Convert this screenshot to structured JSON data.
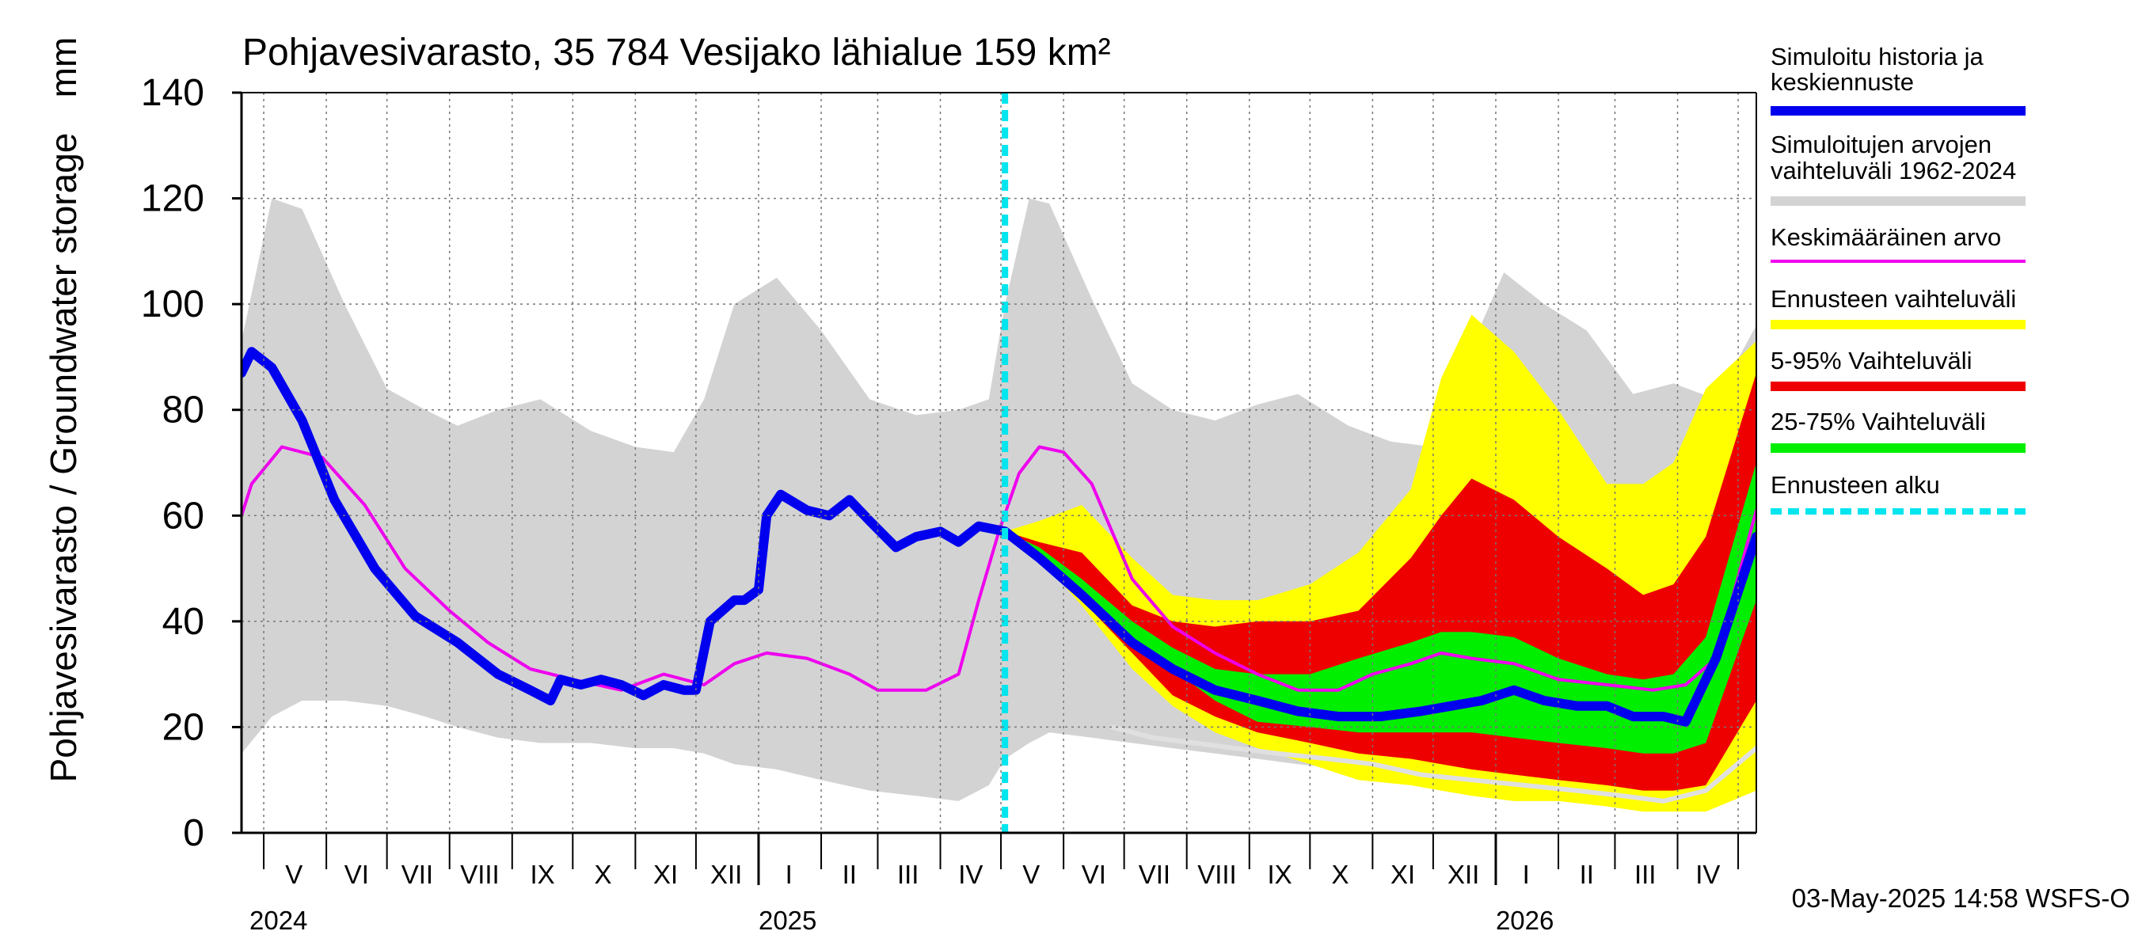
{
  "chart_data": {
    "type": "area",
    "title": "Pohjavesivarasto, 35 784 Vesijako lähialue 159 km²",
    "ylabel": "Pohjavesivarasto / Groundwater storage",
    "yunit": "mm",
    "ylim": [
      0,
      140
    ],
    "yticks": [
      0,
      20,
      40,
      60,
      80,
      100,
      120,
      140
    ],
    "x_start": "2024-04-20",
    "x_end": "2026-05-10",
    "forecast_start": "2025-05-03",
    "month_labels": [
      {
        "label": "V",
        "date": "2024-05-16"
      },
      {
        "label": "VI",
        "date": "2024-06-16"
      },
      {
        "label": "VII",
        "date": "2024-07-16"
      },
      {
        "label": "VIII",
        "date": "2024-08-16"
      },
      {
        "label": "IX",
        "date": "2024-09-16"
      },
      {
        "label": "X",
        "date": "2024-10-16"
      },
      {
        "label": "XI",
        "date": "2024-11-16"
      },
      {
        "label": "XII",
        "date": "2024-12-16"
      },
      {
        "label": "I",
        "date": "2025-01-16"
      },
      {
        "label": "II",
        "date": "2025-02-15"
      },
      {
        "label": "III",
        "date": "2025-03-16"
      },
      {
        "label": "IV",
        "date": "2025-04-16"
      },
      {
        "label": "V",
        "date": "2025-05-16"
      },
      {
        "label": "VI",
        "date": "2025-06-16"
      },
      {
        "label": "VII",
        "date": "2025-07-16"
      },
      {
        "label": "VIII",
        "date": "2025-08-16"
      },
      {
        "label": "IX",
        "date": "2025-09-16"
      },
      {
        "label": "X",
        "date": "2025-10-16"
      },
      {
        "label": "XI",
        "date": "2025-11-16"
      },
      {
        "label": "XII",
        "date": "2025-12-16"
      },
      {
        "label": "I",
        "date": "2026-01-16"
      },
      {
        "label": "II",
        "date": "2026-02-15"
      },
      {
        "label": "III",
        "date": "2026-03-16"
      },
      {
        "label": "IV",
        "date": "2026-04-16"
      }
    ],
    "year_labels": [
      {
        "label": "2024",
        "date": "2024-04-20"
      },
      {
        "label": "2025",
        "date": "2025-01-01"
      },
      {
        "label": "2026",
        "date": "2026-01-01"
      }
    ],
    "legend": [
      {
        "label": "Simuloitu historia ja keskiennuste",
        "color": "#0000ee",
        "style": "thick"
      },
      {
        "label": "Simuloitujen arvojen vaihteluväli 1962-2024",
        "color": "#d3d3d3",
        "style": "thick"
      },
      {
        "label": "Keskimääräinen arvo",
        "color": "#ee00ee",
        "style": "thin"
      },
      {
        "label": "Ennusteen vaihteluväli",
        "color": "#ffff00",
        "style": "thick"
      },
      {
        "label": "5-95% Vaihteluväli",
        "color": "#ee0000",
        "style": "thick"
      },
      {
        "label": "25-75% Vaihteluväli",
        "color": "#00ee00",
        "style": "thick"
      },
      {
        "label": "Ennusteen alku",
        "color": "#00e5ee",
        "style": "dashed"
      }
    ],
    "footer": "03-May-2025 14:58 WSFS-O",
    "series": [
      {
        "name": "Simuloitujen arvojen vaihteluväli 1962-2024",
        "type": "band",
        "color": "#d3d3d3",
        "x": [
          "2024-04-20",
          "2024-05-05",
          "2024-05-20",
          "2024-06-10",
          "2024-07-01",
          "2024-07-20",
          "2024-08-05",
          "2024-08-25",
          "2024-09-15",
          "2024-10-10",
          "2024-11-01",
          "2024-11-20",
          "2024-12-05",
          "2024-12-20",
          "2025-01-10",
          "2025-02-01",
          "2025-02-25",
          "2025-03-20",
          "2025-04-10",
          "2025-04-25",
          "2025-05-03",
          "2025-05-15",
          "2025-05-25",
          "2025-06-15",
          "2025-07-05",
          "2025-07-25",
          "2025-08-15",
          "2025-09-05",
          "2025-09-25",
          "2025-10-20",
          "2025-11-10",
          "2025-12-01",
          "2025-12-20",
          "2026-01-05",
          "2026-01-25",
          "2026-02-15",
          "2026-03-10",
          "2026-03-30",
          "2026-04-20",
          "2026-05-10"
        ],
        "lower": [
          15,
          22,
          25,
          25,
          24,
          22,
          20,
          18,
          17,
          17,
          16,
          16,
          15,
          13,
          12,
          10,
          8,
          7,
          6,
          9,
          14,
          17,
          19,
          18,
          17,
          16,
          15,
          14,
          13,
          12,
          11,
          10,
          9,
          9,
          9,
          8,
          7,
          6,
          6,
          14
        ],
        "upper": [
          93,
          120,
          118,
          100,
          84,
          80,
          77,
          80,
          82,
          76,
          73,
          72,
          82,
          100,
          105,
          95,
          82,
          79,
          80,
          82,
          100,
          120,
          119,
          101,
          85,
          80,
          78,
          81,
          83,
          77,
          74,
          73,
          92,
          106,
          100,
          95,
          83,
          85,
          82,
          96
        ]
      },
      {
        "name": "Ennusteen vaihteluväli",
        "type": "band",
        "color": "#ffff00",
        "x": [
          "2025-05-03",
          "2025-05-20",
          "2025-06-10",
          "2025-07-05",
          "2025-07-25",
          "2025-08-15",
          "2025-09-05",
          "2025-10-01",
          "2025-10-25",
          "2025-11-20",
          "2025-12-05",
          "2025-12-20",
          "2026-01-10",
          "2026-02-01",
          "2026-02-25",
          "2026-03-15",
          "2026-03-30",
          "2026-04-15",
          "2026-05-10"
        ],
        "lower": [
          57,
          52,
          43,
          31,
          24,
          19,
          16,
          13,
          10,
          9,
          8,
          7,
          6,
          6,
          5,
          4,
          4,
          4,
          8
        ],
        "upper": [
          57,
          59,
          62,
          52,
          45,
          44,
          44,
          47,
          53,
          65,
          86,
          98,
          91,
          80,
          66,
          66,
          70,
          84,
          93
        ]
      },
      {
        "name": "5-95% Vaihteluväli",
        "type": "band",
        "color": "#ee0000",
        "x": [
          "2025-05-03",
          "2025-05-20",
          "2025-06-10",
          "2025-07-05",
          "2025-07-25",
          "2025-08-15",
          "2025-09-05",
          "2025-10-01",
          "2025-10-25",
          "2025-11-20",
          "2025-12-05",
          "2025-12-20",
          "2026-01-10",
          "2026-02-01",
          "2026-02-25",
          "2026-03-15",
          "2026-03-30",
          "2026-04-15",
          "2026-05-10"
        ],
        "lower": [
          57,
          52,
          44,
          34,
          26,
          22,
          19,
          17,
          15,
          14,
          13,
          12,
          11,
          10,
          9,
          8,
          8,
          9,
          25
        ],
        "upper": [
          57,
          55,
          53,
          43,
          40,
          39,
          40,
          40,
          42,
          52,
          60,
          67,
          63,
          56,
          50,
          45,
          47,
          56,
          87
        ]
      },
      {
        "name": "25-75% Vaihteluväli",
        "type": "band",
        "color": "#00ee00",
        "x": [
          "2025-05-03",
          "2025-05-20",
          "2025-06-10",
          "2025-07-05",
          "2025-07-25",
          "2025-08-15",
          "2025-09-05",
          "2025-10-01",
          "2025-10-25",
          "2025-11-20",
          "2025-12-05",
          "2025-12-20",
          "2026-01-10",
          "2026-02-01",
          "2026-02-25",
          "2026-03-15",
          "2026-03-30",
          "2026-04-15",
          "2026-05-10"
        ],
        "lower": [
          57,
          53,
          46,
          37,
          31,
          25,
          21,
          20,
          19,
          19,
          19,
          19,
          18,
          17,
          16,
          15,
          15,
          17,
          44
        ],
        "upper": [
          57,
          54,
          48,
          40,
          35,
          31,
          30,
          30,
          33,
          36,
          38,
          38,
          37,
          33,
          30,
          29,
          30,
          37,
          70
        ]
      },
      {
        "name": "Simuloitujen minimi",
        "type": "line",
        "color": "#e0e0e0",
        "x": [
          "2025-06-25",
          "2025-07-15",
          "2025-08-05",
          "2025-08-25",
          "2025-09-15",
          "2025-10-10",
          "2025-11-01",
          "2025-11-25",
          "2025-12-20",
          "2026-01-15",
          "2026-02-10",
          "2026-03-05",
          "2026-03-25",
          "2026-04-15",
          "2026-05-10"
        ],
        "y": [
          20,
          18,
          17,
          16,
          15,
          14,
          13,
          11,
          10,
          9,
          8,
          7,
          6,
          8,
          16
        ]
      },
      {
        "name": "Keskimääräinen arvo",
        "type": "line",
        "color": "#ee00ee",
        "x": [
          "2024-04-20",
          "2024-04-25",
          "2024-05-10",
          "2024-05-30",
          "2024-06-20",
          "2024-07-10",
          "2024-08-01",
          "2024-08-20",
          "2024-09-10",
          "2024-10-01",
          "2024-10-25",
          "2024-11-15",
          "2024-12-05",
          "2024-12-20",
          "2025-01-05",
          "2025-01-25",
          "2025-02-15",
          "2025-03-01",
          "2025-03-25",
          "2025-04-10",
          "2025-04-20",
          "2025-04-30",
          "2025-05-10",
          "2025-05-20",
          "2025-06-01",
          "2025-06-15",
          "2025-07-05",
          "2025-07-25",
          "2025-08-15",
          "2025-09-05",
          "2025-09-25",
          "2025-10-15",
          "2025-11-01",
          "2025-11-20",
          "2025-12-05",
          "2025-12-20",
          "2026-01-10",
          "2026-02-01",
          "2026-02-25",
          "2026-03-20",
          "2026-04-05",
          "2026-04-20",
          "2026-05-10"
        ],
        "y": [
          60,
          66,
          73,
          71,
          62,
          50,
          42,
          36,
          31,
          29,
          27,
          30,
          28,
          32,
          34,
          33,
          30,
          27,
          27,
          30,
          44,
          57,
          68,
          73,
          72,
          66,
          48,
          39,
          34,
          30,
          27,
          27,
          30,
          32,
          34,
          33,
          32,
          29,
          28,
          27,
          28,
          33,
          61
        ]
      },
      {
        "name": "Simuloitu historia ja keskiennuste",
        "type": "line",
        "color": "#0000ee",
        "x": [
          "2024-04-20",
          "2024-04-25",
          "2024-05-05",
          "2024-05-20",
          "2024-06-05",
          "2024-06-25",
          "2024-07-15",
          "2024-08-05",
          "2024-08-25",
          "2024-09-10",
          "2024-09-20",
          "2024-09-25",
          "2024-10-05",
          "2024-10-15",
          "2024-10-25",
          "2024-11-05",
          "2024-11-15",
          "2024-11-25",
          "2024-12-01",
          "2024-12-08",
          "2024-12-20",
          "2024-12-25",
          "2025-01-01",
          "2025-01-05",
          "2025-01-12",
          "2025-01-25",
          "2025-02-05",
          "2025-02-15",
          "2025-02-25",
          "2025-03-10",
          "2025-03-20",
          "2025-04-01",
          "2025-04-10",
          "2025-04-20",
          "2025-05-03",
          "2025-05-20",
          "2025-06-10",
          "2025-07-05",
          "2025-07-25",
          "2025-08-15",
          "2025-09-05",
          "2025-09-25",
          "2025-10-15",
          "2025-11-05",
          "2025-11-25",
          "2025-12-10",
          "2025-12-25",
          "2026-01-10",
          "2026-01-25",
          "2026-02-10",
          "2026-02-25",
          "2026-03-10",
          "2026-03-25",
          "2026-04-05",
          "2026-04-20",
          "2026-05-10"
        ],
        "y": [
          87,
          91,
          88,
          78,
          63,
          50,
          41,
          36,
          30,
          27,
          25,
          29,
          28,
          29,
          28,
          26,
          28,
          27,
          27,
          40,
          44,
          44,
          46,
          60,
          64,
          61,
          60,
          63,
          59,
          54,
          56,
          57,
          55,
          58,
          57,
          52,
          45,
          36,
          31,
          27,
          25,
          23,
          22,
          22,
          23,
          24,
          25,
          27,
          25,
          24,
          24,
          22,
          22,
          21,
          33,
          56
        ]
      }
    ]
  }
}
